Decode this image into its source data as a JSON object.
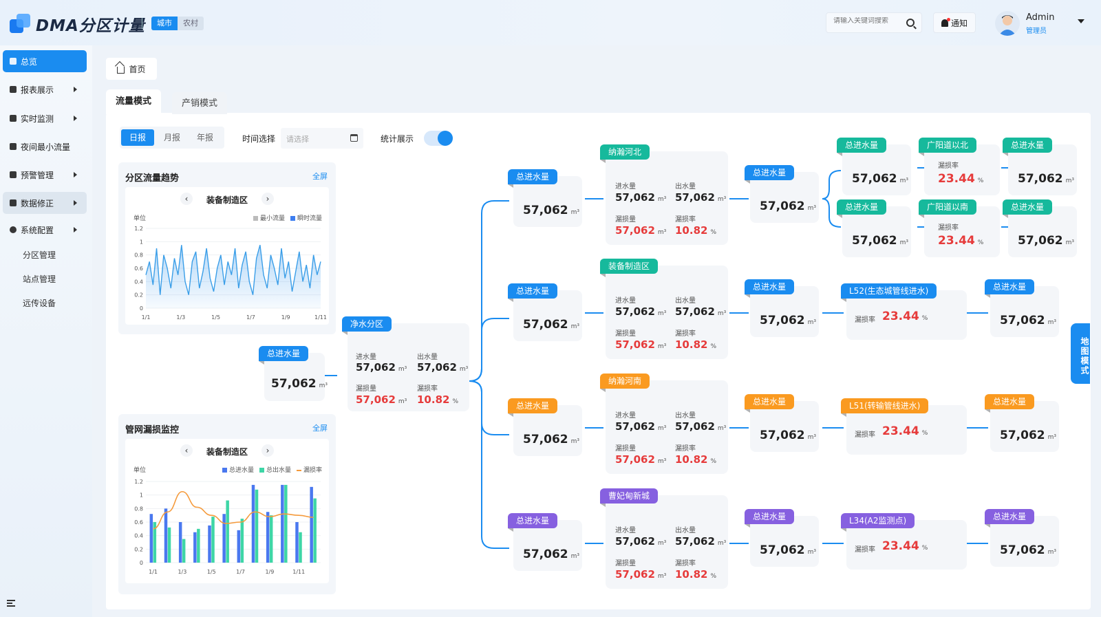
{
  "header": {
    "title": "DMA分区计量",
    "chips": [
      "城市",
      "农村"
    ],
    "search_placeholder": "请输入关键词搜索",
    "notify_label": "通知",
    "user_name": "Admin",
    "user_role": "管理员"
  },
  "sidebar": {
    "items": [
      "总览",
      "报表展示",
      "实时监测",
      "夜间最小流量",
      "预警管理",
      "数据修正",
      "系统配置"
    ],
    "subitems": [
      "分区管理",
      "站点管理",
      "远传设备"
    ]
  },
  "breadcrumb": {
    "home": "首页"
  },
  "tabs": {
    "flow": "流量模式",
    "sales": "产销模式"
  },
  "filters": {
    "periods": [
      "日报",
      "月报",
      "年报"
    ],
    "time_label": "时间选择",
    "date_placeholder": "请选择",
    "stat_label": "统计展示"
  },
  "map_mode": "地图模式",
  "labels": {
    "total_in": "总进水量",
    "inflow": "进水量",
    "outflow": "出水量",
    "loss": "漏损量",
    "loss_rate": "漏损率",
    "unit_m3": "m³",
    "pct": "%",
    "value": "57,062",
    "rate": "10.82",
    "sub_rate": "23.44"
  },
  "trend_card": {
    "title": "分区流量趋势",
    "fullscreen": "全屏",
    "selector": "装备制造区",
    "unit": "单位",
    "legend": [
      "最小流量",
      "瞬时流量"
    ]
  },
  "leak_card": {
    "title": "管网漏损监控",
    "fullscreen": "全屏",
    "selector": "装备制造区",
    "unit": "单位",
    "legend": [
      "总进水量",
      "总出水量",
      "漏损率"
    ]
  },
  "tree": {
    "root": "净水分区",
    "zones": [
      "纳瀚河北",
      "装备制造区",
      "纳瀚河南",
      "曹妃甸新城"
    ],
    "sub": [
      "广阳道以北",
      "广阳道以南",
      "L52(生态城管线进水)",
      "L51(转输管线进水)",
      "L34(A2监测点)"
    ]
  },
  "colors": {
    "blue": "#1a8cf0",
    "teal": "#16b99c",
    "orange": "#fa9a20",
    "purple": "#8660e0",
    "red": "#e63b3b"
  },
  "chart_data": [
    {
      "type": "area",
      "title": "分区流量趋势",
      "ylabel": "单位",
      "ylim": [
        0,
        1.2
      ],
      "x_ticks": [
        "1/1",
        "1/3",
        "1/5",
        "1/7",
        "1/9",
        "1/11"
      ],
      "series": [
        {
          "name": "瞬时流量",
          "values": [
            0.5,
            0.7,
            0.35,
            0.9,
            0.2,
            0.8,
            0.6,
            0.3,
            0.75,
            0.5,
            0.95,
            0.4,
            0.2,
            0.7,
            0.85,
            0.3,
            0.55,
            0.9,
            0.45,
            0.25,
            0.6,
            0.8,
            0.35,
            0.7,
            0.5,
            0.9,
            0.3,
            0.65,
            0.85,
            0.4,
            0.2,
            0.75,
            0.95,
            0.5,
            0.3,
            0.8,
            0.6,
            0.35,
            0.9,
            0.45,
            0.7,
            0.25,
            0.55,
            0.85,
            0.4,
            0.65,
            0.3,
            0.8,
            0.5,
            0.7
          ]
        }
      ]
    },
    {
      "type": "bar",
      "title": "管网漏损监控",
      "ylabel": "单位",
      "ylim": [
        0,
        1.2
      ],
      "categories": [
        "1/1",
        "1/2",
        "1/3",
        "1/4",
        "1/5",
        "1/6",
        "1/7",
        "1/8",
        "1/9",
        "1/10",
        "1/11",
        "1/12"
      ],
      "series": [
        {
          "name": "总进水量",
          "values": [
            0.72,
            0.8,
            0.6,
            0.45,
            0.55,
            0.72,
            0.48,
            1.15,
            0.75,
            1.15,
            0.6,
            1.12
          ]
        },
        {
          "name": "总出水量",
          "values": [
            0.6,
            0.52,
            0.35,
            0.5,
            0.68,
            0.92,
            0.65,
            1.08,
            0.7,
            1.15,
            0.45,
            0.95
          ]
        },
        {
          "name": "漏损率",
          "values": [
            0.5,
            0.75,
            1.05,
            0.82,
            0.7,
            0.58,
            0.6,
            0.75,
            0.68,
            0.72,
            0.7,
            0.67
          ]
        }
      ]
    }
  ]
}
